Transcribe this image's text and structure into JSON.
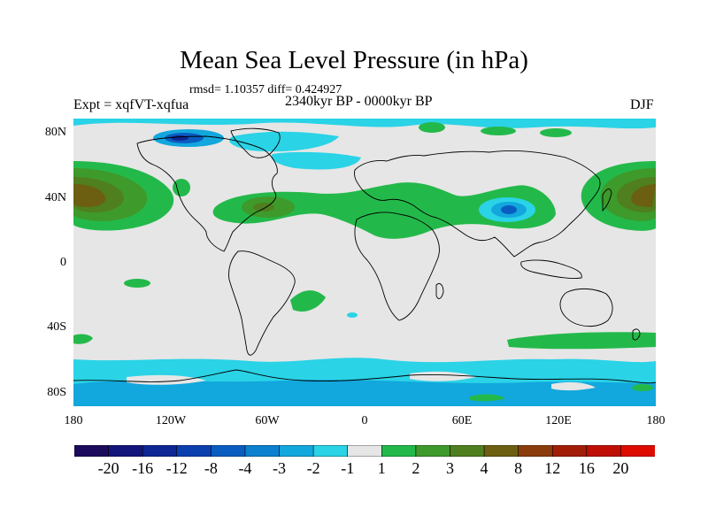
{
  "figure": {
    "title": "Mean Sea Level Pressure (in hPa)",
    "stats": "rmsd= 1.10357 diff= 0.424927",
    "experiment": "Expt = xqfVT-xqfua",
    "period": "2340kyr BP - 0000kyr BP",
    "season": "DJF"
  },
  "axes": {
    "y_ticks": [
      "80N",
      "40N",
      "0",
      "40S",
      "80S"
    ],
    "x_ticks": [
      "180",
      "120W",
      "60W",
      "0",
      "60E",
      "120E",
      "180"
    ]
  },
  "colorbar": {
    "labels": [
      "-20",
      "-16",
      "-12",
      "-8",
      "-4",
      "-3",
      "-2",
      "-1",
      "1",
      "2",
      "3",
      "4",
      "8",
      "12",
      "16",
      "20"
    ],
    "colors": [
      "#1c0a5c",
      "#14157a",
      "#0f2794",
      "#0c3fae",
      "#0a5dc0",
      "#0b80cf",
      "#12a7dd",
      "#2ad3e6",
      "#e6e6e6",
      "#23b94a",
      "#3e9a2a",
      "#4f7f1f",
      "#6c5f12",
      "#8b3c0c",
      "#a11d08",
      "#be0e05",
      "#de0b00"
    ]
  }
}
